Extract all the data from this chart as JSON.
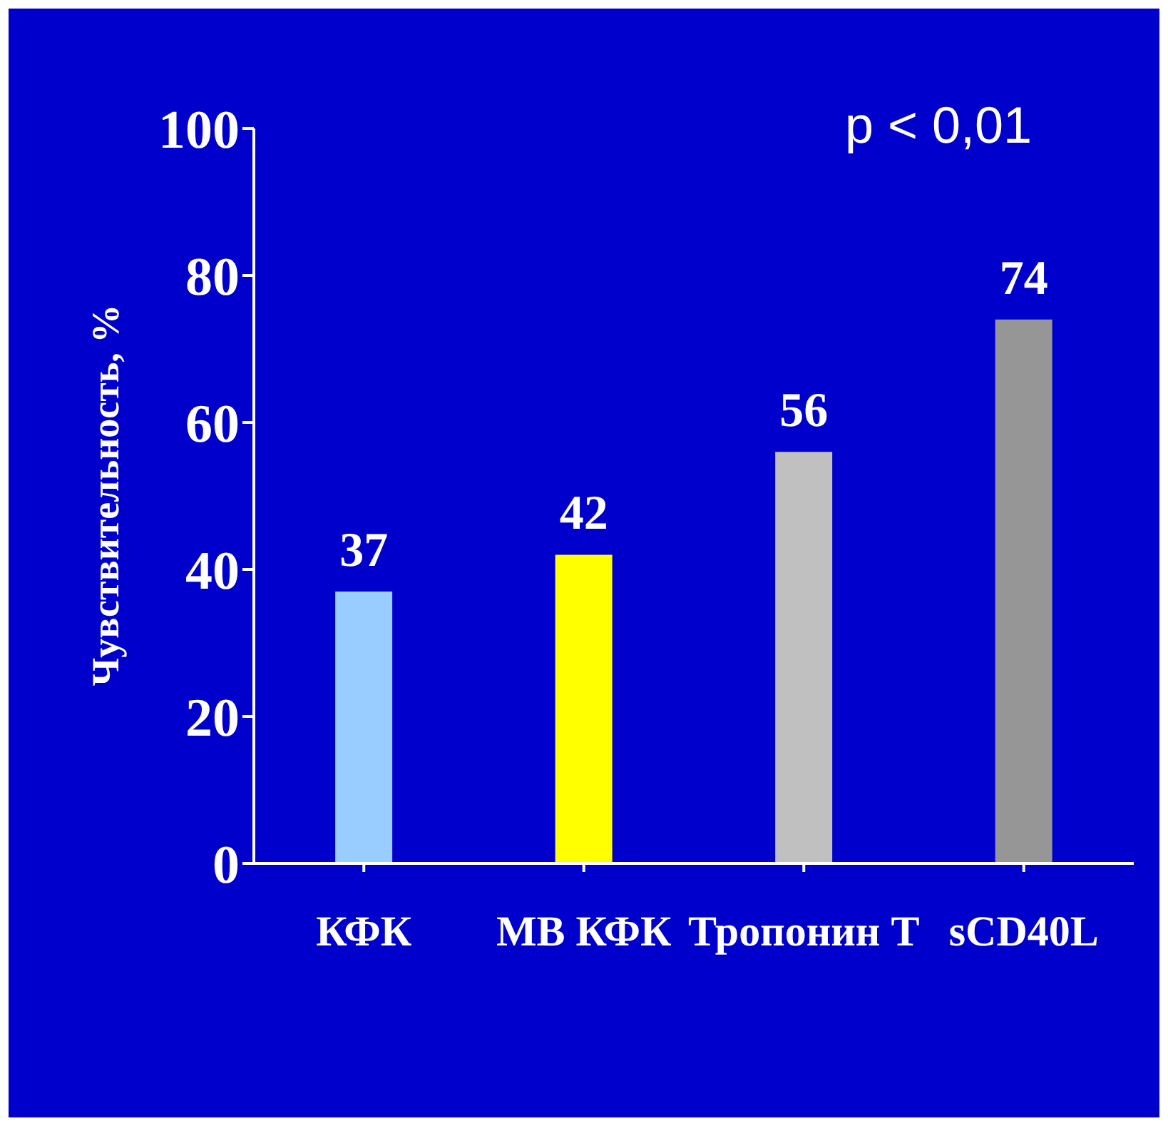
{
  "chart_data": {
    "type": "bar",
    "categories": [
      "КФК",
      "МВ КФК",
      "Тропонин Т",
      "sCD40L"
    ],
    "values": [
      37,
      42,
      56,
      74
    ],
    "colors": [
      "#99ccff",
      "#ffff00",
      "#c0c0c0",
      "#969696"
    ],
    "ylabel": "Чувствительность, %",
    "ylim": [
      0,
      100
    ],
    "yticks": [
      0,
      20,
      40,
      60,
      80,
      100
    ],
    "data_labels": true,
    "grid": false,
    "legend": false,
    "annotations": [
      "p < 0,01"
    ]
  }
}
